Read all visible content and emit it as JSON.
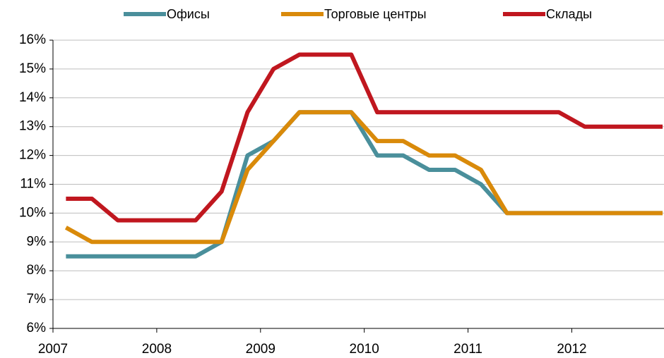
{
  "chart_data": {
    "type": "line",
    "x": [
      2007.125,
      2007.375,
      2007.625,
      2007.875,
      2008.125,
      2008.375,
      2008.625,
      2008.875,
      2009.125,
      2009.375,
      2009.625,
      2009.875,
      2010.125,
      2010.375,
      2010.625,
      2010.875,
      2011.125,
      2011.375,
      2011.625,
      2011.875,
      2012.125,
      2012.375,
      2012.625,
      2012.875
    ],
    "series": [
      {
        "name": "Офисы",
        "color": "#4a8f9b",
        "values": [
          8.5,
          8.5,
          8.5,
          8.5,
          8.5,
          8.5,
          9,
          12,
          12.5,
          13.5,
          13.5,
          13.5,
          12,
          12,
          11.5,
          11.5,
          11,
          10,
          10,
          10,
          10,
          10,
          10,
          10
        ]
      },
      {
        "name": "Торговые центры",
        "color": "#d98a0a",
        "values": [
          9.5,
          9,
          9,
          9,
          9,
          9,
          9,
          11.5,
          12.5,
          13.5,
          13.5,
          13.5,
          12.5,
          12.5,
          12,
          12,
          11.5,
          10,
          10,
          10,
          10,
          10,
          10,
          10
        ]
      },
      {
        "name": "Склады",
        "color": "#c0171f",
        "values": [
          10.5,
          10.5,
          9.75,
          9.75,
          9.75,
          9.75,
          10.75,
          13.5,
          15,
          15.5,
          15.5,
          15.5,
          13.5,
          13.5,
          13.5,
          13.5,
          13.5,
          13.5,
          13.5,
          13.5,
          13,
          13,
          13,
          13
        ]
      }
    ],
    "xlim": [
      2007,
      2012.875
    ],
    "xticks": [
      2007,
      2008,
      2009,
      2010,
      2011,
      2012
    ],
    "ylim": [
      6,
      16
    ],
    "yticks": [
      {
        "value": 6,
        "label": "6%"
      },
      {
        "value": 7,
        "label": "7%"
      },
      {
        "value": 8,
        "label": "8%"
      },
      {
        "value": 9,
        "label": "9%"
      },
      {
        "value": 10,
        "label": "10%"
      },
      {
        "value": 11,
        "label": "11%"
      },
      {
        "value": 12,
        "label": "12%"
      },
      {
        "value": 13,
        "label": "13%"
      },
      {
        "value": 14,
        "label": "14%"
      },
      {
        "value": 15,
        "label": "15%"
      },
      {
        "value": 16,
        "label": "16%"
      }
    ],
    "grid": true,
    "legend": "top"
  }
}
